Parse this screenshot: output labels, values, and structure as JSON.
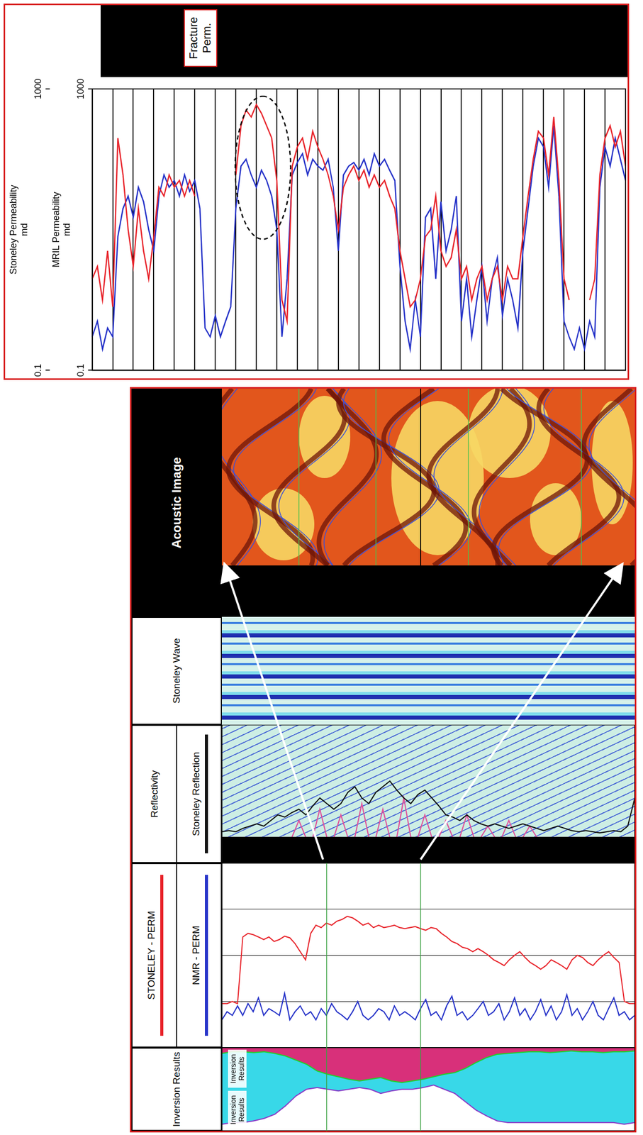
{
  "chart_data": [
    {
      "type": "line",
      "xlabel": [
        "Stoneley Permeability",
        "md"
      ],
      "x2label": [
        "MRIL Permeability",
        "md"
      ],
      "log": "x",
      "xlim": [
        0.1,
        1000
      ],
      "xticks": [
        0.1,
        1000
      ],
      "x2lim": [
        0.1,
        1000
      ],
      "x2ticks": [
        0.1,
        1000
      ],
      "grid": true,
      "tick_labels": "x",
      "annotations": [
        "Fracture Perm."
      ],
      "series": [
        {
          "name": "Stoneley Permeability",
          "color": "#e8232a",
          "values": [
            2,
            3,
            1,
            5,
            0.8,
            200,
            60,
            10,
            3,
            20,
            5,
            2,
            8,
            40,
            30,
            60,
            40,
            50,
            30,
            50,
            30,
            null,
            null,
            null,
            null,
            null,
            null,
            null,
            60,
            300,
            500,
            400,
            600,
            450,
            300,
            200,
            50,
            1,
            0.5,
            80,
            150,
            200,
            100,
            250,
            150,
            100,
            60,
            30,
            10,
            40,
            60,
            80,
            50,
            70,
            40,
            60,
            40,
            50,
            30,
            20,
            5,
            2,
            0.8,
            1,
            2,
            8,
            10,
            30,
            5,
            3,
            4,
            10,
            2,
            3,
            1,
            2,
            3,
            1,
            2,
            3,
            1,
            3,
            2,
            2,
            8,
            30,
            100,
            250,
            200,
            60,
            400,
            50,
            2,
            1,
            null,
            null,
            null,
            1,
            2,
            60,
            200,
            300,
            150,
            250,
            80
          ]
        },
        {
          "name": "MRIL Permeability",
          "color": "#2532c8",
          "axis": "x2",
          "values": [
            0.3,
            0.5,
            0.2,
            0.4,
            0.3,
            8,
            20,
            30,
            15,
            40,
            25,
            10,
            5,
            30,
            60,
            40,
            50,
            30,
            60,
            35,
            50,
            20,
            0.4,
            0.3,
            0.6,
            0.3,
            0.5,
            0.8,
            20,
            80,
            100,
            60,
            40,
            70,
            50,
            30,
            10,
            0.3,
            2,
            60,
            90,
            120,
            60,
            100,
            80,
            70,
            100,
            40,
            5,
            60,
            80,
            90,
            70,
            100,
            60,
            120,
            80,
            100,
            70,
            50,
            3,
            0.5,
            0.2,
            1,
            0.3,
            15,
            20,
            2,
            25,
            5,
            10,
            30,
            0.5,
            2,
            0.3,
            1,
            3,
            0.5,
            2,
            4,
            0.6,
            2,
            1,
            0.4,
            5,
            20,
            80,
            200,
            150,
            40,
            300,
            30,
            0.5,
            0.3,
            0.2,
            0.4,
            0.2,
            0.5,
            0.3,
            40,
            150,
            80,
            200,
            100,
            50
          ]
        }
      ]
    },
    {
      "type": "area",
      "title": "Inversion Results",
      "annotations": [
        "Inversion Results",
        "Inversion Results"
      ],
      "xlim": [
        0,
        1
      ],
      "tick_labels": false,
      "series": [
        {
          "color": "#22d02a",
          "values": [
            0.93,
            0.95,
            0.95,
            0.94,
            0.95,
            0.93,
            0.9,
            0.85,
            0.8,
            0.72,
            0.68,
            0.65,
            0.62,
            0.6,
            0.62,
            0.64,
            0.6,
            0.58,
            0.6,
            0.62,
            0.65,
            0.68,
            0.7,
            0.75,
            0.82,
            0.88,
            0.92,
            0.93,
            0.94,
            0.95,
            0.95,
            0.94,
            0.95,
            0.96,
            0.95,
            0.95,
            0.94,
            0.95,
            0.95,
            0.96
          ]
        },
        {
          "color": "#8a3cc8",
          "values": [
            0.08,
            0.1,
            0.1,
            0.12,
            0.15,
            0.2,
            0.3,
            0.42,
            0.5,
            0.52,
            0.5,
            0.48,
            0.5,
            0.52,
            0.5,
            0.45,
            0.48,
            0.5,
            0.5,
            0.52,
            0.55,
            0.5,
            0.45,
            0.35,
            0.25,
            0.18,
            0.12,
            0.1,
            0.1,
            0.1,
            0.1,
            0.1,
            0.1,
            0.1,
            0.1,
            0.1,
            0.1,
            0.1,
            0.08,
            0.1
          ]
        }
      ]
    },
    {
      "type": "line",
      "log": "x",
      "xlim": [
        0.1,
        1000
      ],
      "xticks": [
        0.1,
        1,
        10,
        100,
        1000
      ],
      "tick_labels": false,
      "grid": true,
      "legend": "top",
      "series": [
        {
          "name": "STONELEY - PERM",
          "color": "#e8232a",
          "values": [
            0.9,
            0.9,
            1,
            0.9,
            25,
            30,
            28,
            25,
            22,
            25,
            20,
            22,
            26,
            24,
            18,
            12,
            8,
            30,
            45,
            40,
            50,
            45,
            55,
            60,
            70,
            65,
            55,
            45,
            50,
            40,
            45,
            40,
            42,
            45,
            40,
            38,
            40,
            42,
            38,
            35,
            40,
            38,
            30,
            25,
            20,
            18,
            15,
            14,
            12,
            14,
            12,
            10,
            8,
            7,
            6,
            8,
            10,
            12,
            9,
            7,
            6,
            5,
            6,
            8,
            7,
            6,
            5,
            8,
            10,
            9,
            7,
            6,
            8,
            10,
            12,
            9,
            7,
            1,
            0.9,
            0.9
          ]
        },
        {
          "name": "NMR - PERM",
          "color": "#2532c8",
          "values": [
            0.4,
            0.6,
            0.5,
            0.8,
            0.5,
            0.9,
            0.6,
            1.2,
            0.5,
            0.7,
            0.6,
            0.5,
            1.5,
            0.4,
            0.6,
            0.8,
            0.5,
            0.6,
            0.4,
            0.7,
            0.5,
            0.9,
            0.6,
            0.5,
            0.4,
            0.6,
            1.0,
            0.5,
            0.4,
            0.5,
            0.7,
            0.6,
            0.4,
            0.8,
            0.5,
            0.6,
            0.5,
            0.4,
            0.7,
            1.1,
            0.5,
            0.6,
            0.4,
            0.8,
            1.3,
            0.5,
            0.6,
            0.4,
            0.5,
            0.7,
            1.0,
            0.5,
            0.6,
            0.9,
            0.4,
            0.6,
            1.2,
            0.5,
            0.7,
            0.4,
            0.6,
            1.1,
            0.5,
            0.8,
            0.4,
            0.6,
            1.4,
            0.5,
            0.7,
            0.4,
            0.6,
            1.0,
            0.5,
            0.4,
            0.7,
            1.2,
            0.5,
            0.6,
            0.4,
            0.5
          ]
        }
      ]
    },
    {
      "type": "line",
      "title": "Reflectivity",
      "xlim": [
        0,
        1
      ],
      "tick_labels": false,
      "legend": "top",
      "series": [
        {
          "name": "Stoneley Reflection",
          "color": "#111111",
          "values": [
            0.05,
            0.06,
            0.05,
            0.08,
            0.1,
            0.12,
            0.1,
            0.15,
            0.2,
            0.18,
            0.22,
            0.25,
            0.2,
            0.28,
            0.35,
            0.3,
            0.25,
            0.3,
            0.4,
            0.45,
            0.35,
            0.3,
            0.4,
            0.45,
            0.5,
            0.42,
            0.35,
            0.3,
            0.38,
            0.42,
            0.35,
            0.28,
            0.2,
            0.18,
            0.15,
            0.2,
            0.15,
            0.12,
            0.1,
            0.12,
            0.1,
            0.08,
            0.1,
            0.12,
            0.1,
            0.08,
            0.06,
            0.08,
            0.1,
            0.08,
            0.06,
            0.05,
            0.06,
            0.05,
            0.04,
            0.05,
            0.06,
            0.05,
            0.1,
            0.35
          ]
        },
        {
          "color": "#e0509a",
          "values": [
            0,
            0,
            0,
            0,
            0,
            0,
            0,
            0,
            0,
            0,
            0,
            0.15,
            0,
            0,
            0.25,
            0,
            0,
            0.2,
            0,
            0,
            0.3,
            0,
            0,
            0.25,
            0,
            0,
            0.35,
            0,
            0,
            0.2,
            0,
            0,
            0.15,
            0,
            0,
            0.2,
            0,
            0,
            0.1,
            0,
            0,
            0.15,
            0,
            0,
            0.1,
            0,
            0,
            0,
            0,
            0,
            0,
            0,
            0,
            0,
            0,
            0,
            0,
            0,
            0,
            0
          ]
        }
      ]
    },
    {
      "type": "image",
      "title": "Stoneley Wave"
    },
    {
      "type": "image",
      "title": "Acoustic Image"
    }
  ]
}
